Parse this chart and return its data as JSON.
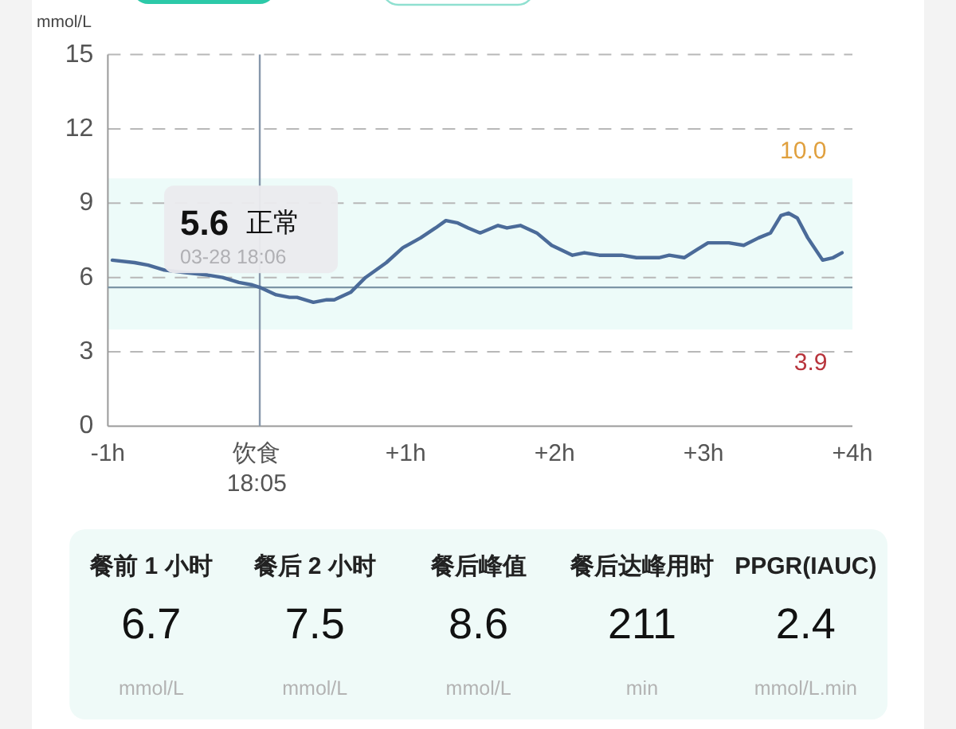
{
  "chart_data": [
    {
      "type": "line",
      "ylabel": "mmol/L",
      "x": [
        -0.97,
        -0.82,
        -0.73,
        -0.62,
        -0.48,
        -0.33,
        -0.23,
        -0.12,
        -0.03,
        0.02,
        0.13,
        0.22,
        0.27,
        0.38,
        0.47,
        0.52,
        0.63,
        0.73,
        0.87,
        0.98,
        1.1,
        1.2,
        1.27,
        1.35,
        1.42,
        1.5,
        1.62,
        1.68,
        1.77,
        1.88,
        1.98,
        2.12,
        2.2,
        2.3,
        2.45,
        2.55,
        2.7,
        2.77,
        2.87,
        2.95,
        3.03,
        3.17,
        3.27,
        3.37,
        3.45,
        3.52,
        3.57,
        3.63,
        3.7,
        3.8,
        3.87,
        3.93
      ],
      "series": [
        {
          "color": "#4b6b99",
          "values": [
            6.7,
            6.6,
            6.5,
            6.3,
            6.2,
            6.1,
            6.0,
            5.8,
            5.7,
            5.6,
            5.3,
            5.2,
            5.2,
            5.0,
            5.1,
            5.1,
            5.4,
            6.0,
            6.6,
            7.2,
            7.6,
            8.0,
            8.3,
            8.2,
            8.0,
            7.8,
            8.1,
            8.0,
            8.1,
            7.8,
            7.3,
            6.9,
            7.0,
            6.9,
            6.9,
            6.8,
            6.8,
            6.9,
            6.8,
            7.1,
            7.4,
            7.4,
            7.3,
            7.6,
            7.8,
            8.5,
            8.6,
            8.4,
            7.6,
            6.7,
            6.8,
            7.0
          ]
        }
      ],
      "xlim": [
        -1,
        4
      ],
      "xticks": [
        {
          "value": -1,
          "label": "-1h"
        },
        {
          "value": 0,
          "label": "饮食\n18:05"
        },
        {
          "value": 1,
          "label": "+1h"
        },
        {
          "value": 2,
          "label": "+2h"
        },
        {
          "value": 3,
          "label": "+3h"
        },
        {
          "value": 4,
          "label": "+4h"
        }
      ],
      "ylim": [
        0,
        15
      ],
      "yticks": [
        0,
        3,
        6,
        9,
        12,
        15
      ],
      "grid": "y",
      "bands": [
        {
          "axis": "y",
          "from": 3.9,
          "to": 10.0,
          "color": "#edfbf9"
        }
      ],
      "ref_lines": [
        {
          "axis": "x",
          "value": 0.02,
          "color": "#8797ab"
        },
        {
          "axis": "y",
          "value": 5.6,
          "color": "#7c95a6"
        }
      ],
      "annotations": [
        {
          "text": "10.0",
          "x": 3.67,
          "y": 10.0
        },
        {
          "text": "3.9",
          "x": 3.72,
          "y": 3.9
        },
        {
          "text": "5.6 正常",
          "x": 0.02,
          "y": 5.6
        },
        {
          "text": "03-28 18:06",
          "x": 0.02,
          "y": 5.6
        }
      ]
    },
    {
      "type": "other",
      "categories": [
        "餐前 1 小时",
        "餐后 2 小时",
        "餐后峰值",
        "餐后达峰用时",
        "PPGR(IAUC)"
      ],
      "values": [
        6.7,
        7.5,
        8.6,
        211,
        2.4
      ],
      "data_labels": true,
      "annotations": [
        "mmol/L",
        "mmol/L",
        "mmol/L",
        "min",
        "mmol/L.min"
      ]
    }
  ]
}
